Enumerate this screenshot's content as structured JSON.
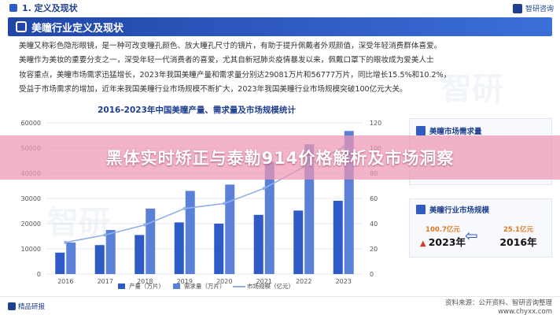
{
  "header": {
    "section_title": "1. 定义及现状",
    "brand": "智研咨询"
  },
  "banner": {
    "title": "美瞳行业定义及现状"
  },
  "paragraph": {
    "lines": [
      "美瞳又称彩色隐形眼镜，是一种可改变瞳孔颜色、放大瞳孔尺寸的镜片，有助于提升佩戴者外观颜值，深受年轻消费群体喜爱。",
      "美瞳作为美妆的重要分支之一，深受年轻一代消费者的喜爱，尤其自新冠肺炎疫情暴发以来，佩戴口罩下的眼妆成为爱美人士",
      "妆容重点，美瞳市场需求迅猛增长，2023年我国美瞳产量和需求量分别达29081万片和56777万片，同比增长15.5%和10.2%，",
      "受益于市场需求的增加，近年来我国美瞳行业市场规模不断扩大，2023年我国美瞳行业市场规模突破100亿元大关。"
    ]
  },
  "chart_data": {
    "type": "bar",
    "title": "2016-2023年中国美瞳产量、需求量及市场规模统计",
    "categories": [
      "2016",
      "2017",
      "2018",
      "2019",
      "2020",
      "2021",
      "2022",
      "2023"
    ],
    "series": [
      {
        "name": "产量（万片）",
        "type": "bar",
        "axis": "left",
        "values": [
          8500,
          11500,
          15500,
          20500,
          20000,
          23500,
          25200,
          29081
        ]
      },
      {
        "name": "需求量（万片）",
        "type": "bar",
        "axis": "left",
        "values": [
          12500,
          17500,
          26000,
          33000,
          35500,
          44500,
          51500,
          56777
        ]
      },
      {
        "name": "市场规模（亿元）",
        "type": "line",
        "axis": "right",
        "values": [
          25.1,
          31,
          39,
          52,
          56,
          68,
          85,
          100.7
        ]
      }
    ],
    "y_left": {
      "ticks": [
        0,
        10000,
        20000,
        30000,
        40000,
        50000,
        60000
      ],
      "ylim": [
        0,
        60000
      ]
    },
    "y_right": {
      "ticks": [
        0,
        20,
        40,
        60,
        80,
        100,
        120
      ],
      "ylim": [
        0,
        120
      ]
    },
    "legend_placement": "bottom",
    "grid": true,
    "colors": {
      "production": "#2f5bc6",
      "demand": "#5b80d8",
      "market": "#8fb0e8"
    }
  },
  "cards": {
    "demand_title": "美瞳市场需求量",
    "market_title": "美瞳行业市场规模",
    "stat_2023_value": "100.7亿元",
    "stat_2023_year": "2023年",
    "stat_2016_value": "25.1亿元",
    "stat_2016_year": "2016年"
  },
  "footer": {
    "logo": "精品研报",
    "source_line1": "资料来源：公开资料、智研咨询整理",
    "source_line2": "www.chyxx.com"
  },
  "overlay": {
    "text": "黑体实时矫正与泰勒914价格解析及市场洞察"
  },
  "watermark": "智研"
}
